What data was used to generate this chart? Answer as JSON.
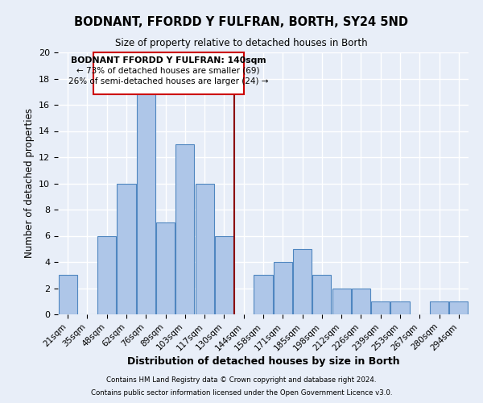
{
  "title": "BODNANT, FFORDD Y FULFRAN, BORTH, SY24 5ND",
  "subtitle": "Size of property relative to detached houses in Borth",
  "xlabel": "Distribution of detached houses by size in Borth",
  "ylabel": "Number of detached properties",
  "bin_labels": [
    "21sqm",
    "35sqm",
    "48sqm",
    "62sqm",
    "76sqm",
    "89sqm",
    "103sqm",
    "117sqm",
    "130sqm",
    "144sqm",
    "158sqm",
    "171sqm",
    "185sqm",
    "198sqm",
    "212sqm",
    "226sqm",
    "239sqm",
    "253sqm",
    "267sqm",
    "280sqm",
    "294sqm"
  ],
  "bar_heights": [
    3,
    0,
    6,
    10,
    17,
    7,
    13,
    10,
    6,
    0,
    3,
    4,
    5,
    3,
    2,
    2,
    1,
    1,
    0,
    1,
    1
  ],
  "bar_color": "#aec6e8",
  "bar_edge_color": "#4f86c0",
  "background_color": "#e8eef8",
  "grid_color": "#ffffff",
  "vline_x_index": 9,
  "vline_color": "#8b0000",
  "ylim": [
    0,
    20
  ],
  "yticks": [
    0,
    2,
    4,
    6,
    8,
    10,
    12,
    14,
    16,
    18,
    20
  ],
  "annotation_title": "BODNANT FFORDD Y FULFRAN: 140sqm",
  "annotation_line1": "← 73% of detached houses are smaller (69)",
  "annotation_line2": "26% of semi-detached houses are larger (24) →",
  "annotation_box_color": "#ffffff",
  "annotation_box_edge": "#cc0000",
  "footer_line1": "Contains HM Land Registry data © Crown copyright and database right 2024.",
  "footer_line2": "Contains public sector information licensed under the Open Government Licence v3.0."
}
